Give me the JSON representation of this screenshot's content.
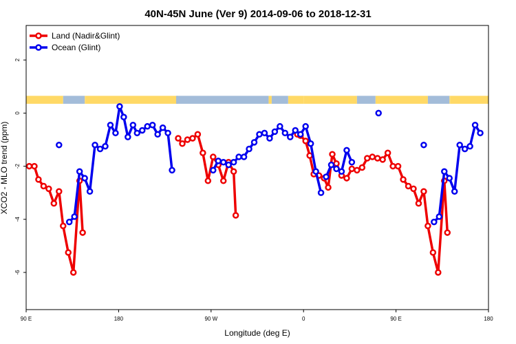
{
  "chart_data": {
    "type": "line",
    "title": "40N-45N June (Ver 9)   2014-09-06 to 2018-12-31",
    "xlabel": "Longitude (deg E)",
    "ylabel": "XCO2 - MLO trend (ppm)",
    "xlim": [
      90,
      540
    ],
    "ylim": [
      -7.4,
      3.3
    ],
    "x_ticks": [
      {
        "value": 90,
        "label": "90 E"
      },
      {
        "value": 180,
        "label": "180"
      },
      {
        "value": 270,
        "label": "90 W"
      },
      {
        "value": 360,
        "label": "0"
      },
      {
        "value": 450,
        "label": "90 E"
      },
      {
        "value": 540,
        "label": "180"
      }
    ],
    "y_ticks": [
      {
        "value": 2,
        "label": "2"
      },
      {
        "value": 0,
        "label": "0"
      },
      {
        "value": -2,
        "label": "-2"
      },
      {
        "value": -4,
        "label": "-4"
      },
      {
        "value": -6,
        "label": "-6"
      }
    ],
    "legend_position": "top-left",
    "series": [
      {
        "name": "Land (Nadir&Glint)",
        "color": "#ee0000",
        "segments": [
          [
            [
              93,
              -2.0
            ],
            [
              98,
              -2.0
            ],
            [
              102,
              -2.5
            ],
            [
              107,
              -2.75
            ],
            [
              112,
              -2.85
            ],
            [
              117,
              -3.4
            ],
            [
              122,
              -2.95
            ],
            [
              126,
              -4.25
            ],
            [
              131,
              -5.25
            ],
            [
              136,
              -6.0
            ],
            [
              142,
              -2.55
            ],
            [
              145,
              -4.5
            ]
          ],
          [
            [
              238,
              -0.95
            ],
            [
              242,
              -1.15
            ],
            [
              247,
              -1.0
            ],
            [
              252,
              -0.95
            ],
            [
              257,
              -0.8
            ],
            [
              262,
              -1.5
            ],
            [
              267,
              -2.55
            ],
            [
              272,
              -1.65
            ],
            [
              277,
              -1.95
            ],
            [
              282,
              -2.55
            ],
            [
              287,
              -1.85
            ],
            [
              292,
              -2.2
            ],
            [
              294,
              -3.85
            ]
          ],
          [
            [
              354,
              -0.8
            ],
            [
              357,
              -0.85
            ],
            [
              362,
              -1.05
            ],
            [
              366,
              -1.6
            ],
            [
              370,
              -2.3
            ],
            [
              375,
              -2.35
            ],
            [
              380,
              -2.45
            ],
            [
              384,
              -2.8
            ],
            [
              388,
              -1.55
            ],
            [
              392,
              -1.9
            ],
            [
              397,
              -2.35
            ],
            [
              402,
              -2.45
            ],
            [
              407,
              -2.1
            ],
            [
              412,
              -2.15
            ],
            [
              417,
              -2.05
            ],
            [
              422,
              -1.7
            ],
            [
              427,
              -1.65
            ],
            [
              432,
              -1.7
            ],
            [
              437,
              -1.75
            ],
            [
              442,
              -1.5
            ],
            [
              447,
              -2.0
            ],
            [
              452,
              -2.0
            ],
            [
              457,
              -2.5
            ],
            [
              462,
              -2.75
            ],
            [
              467,
              -2.85
            ],
            [
              472,
              -3.4
            ],
            [
              477,
              -2.95
            ],
            [
              481,
              -4.25
            ],
            [
              486,
              -5.25
            ],
            [
              491,
              -6.0
            ],
            [
              497,
              -2.55
            ],
            [
              500,
              -4.5
            ]
          ]
        ]
      },
      {
        "name": "Ocean (Glint)",
        "color": "#0000ee",
        "segments": [
          [
            [
              122,
              -1.2
            ]
          ],
          [
            [
              132,
              -4.1
            ],
            [
              137,
              -3.9
            ],
            [
              142,
              -2.2
            ],
            [
              147,
              -2.45
            ],
            [
              152,
              -2.95
            ],
            [
              157,
              -1.2
            ],
            [
              162,
              -1.35
            ],
            [
              167,
              -1.25
            ],
            [
              172,
              -0.45
            ],
            [
              177,
              -0.75
            ],
            [
              181,
              0.25
            ],
            [
              185,
              -0.15
            ],
            [
              189,
              -0.9
            ],
            [
              194,
              -0.45
            ],
            [
              198,
              -0.75
            ],
            [
              203,
              -0.65
            ],
            [
              208,
              -0.5
            ],
            [
              213,
              -0.45
            ],
            [
              218,
              -0.8
            ],
            [
              223,
              -0.55
            ],
            [
              228,
              -0.75
            ],
            [
              232,
              -2.15
            ]
          ],
          [
            [
              272,
              -2.15
            ],
            [
              277,
              -1.8
            ],
            [
              282,
              -1.85
            ],
            [
              287,
              -1.95
            ],
            [
              292,
              -1.85
            ],
            [
              297,
              -1.65
            ],
            [
              302,
              -1.65
            ],
            [
              307,
              -1.35
            ],
            [
              312,
              -1.1
            ],
            [
              317,
              -0.8
            ],
            [
              322,
              -0.75
            ],
            [
              327,
              -0.95
            ],
            [
              332,
              -0.7
            ],
            [
              337,
              -0.5
            ],
            [
              342,
              -0.75
            ],
            [
              347,
              -0.9
            ],
            [
              352,
              -0.65
            ],
            [
              357,
              -0.8
            ],
            [
              362,
              -0.5
            ],
            [
              367,
              -1.15
            ],
            [
              372,
              -2.2
            ],
            [
              377,
              -3.0
            ]
          ],
          [
            [
              382,
              -2.4
            ],
            [
              387,
              -1.95
            ],
            [
              392,
              -2.1
            ],
            [
              397,
              -2.2
            ],
            [
              402,
              -1.4
            ],
            [
              407,
              -1.85
            ]
          ],
          [
            [
              433,
              0.0
            ]
          ],
          [
            [
              477,
              -1.2
            ]
          ],
          [
            [
              487,
              -4.1
            ],
            [
              492,
              -3.9
            ],
            [
              497,
              -2.2
            ],
            [
              502,
              -2.45
            ],
            [
              507,
              -2.95
            ],
            [
              512,
              -1.2
            ],
            [
              517,
              -1.35
            ],
            [
              522,
              -1.25
            ],
            [
              527,
              -0.45
            ],
            [
              532,
              -0.75
            ]
          ]
        ]
      }
    ],
    "surface_strip": {
      "y_range": [
        0.35,
        0.65
      ],
      "land_color": "#ffd966",
      "ocean_color": "#a3bcd9",
      "land_segments": [
        [
          90,
          126
        ],
        [
          147,
          148
        ],
        [
          148,
          236
        ],
        [
          236,
          238
        ],
        [
          326,
          329
        ],
        [
          345,
          360
        ],
        [
          360,
          412
        ],
        [
          430,
          481
        ],
        [
          502,
          503
        ],
        [
          503,
          540
        ]
      ],
      "ocean_segments": [
        [
          126,
          147
        ],
        [
          236,
          326
        ],
        [
          329,
          345
        ],
        [
          412,
          430
        ],
        [
          481,
          502
        ]
      ]
    }
  }
}
